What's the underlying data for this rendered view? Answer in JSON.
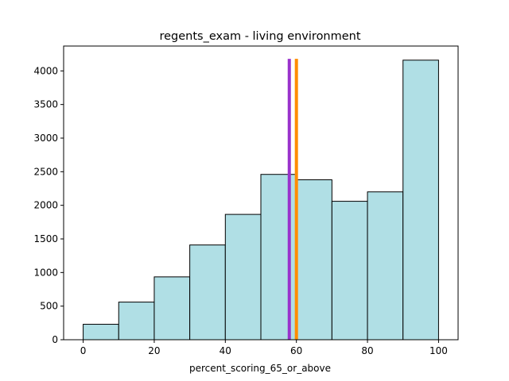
{
  "chart_data": {
    "type": "bar",
    "title": "regents_exam - living environment",
    "xlabel": "percent_scoring_65_or_above",
    "ylabel": "",
    "xlim": [
      -5.5,
      105.5
    ],
    "ylim": [
      0,
      4370
    ],
    "bin_edges": [
      0,
      10,
      20,
      30,
      40,
      50,
      60,
      70,
      80,
      90,
      100
    ],
    "values": [
      230,
      560,
      935,
      1410,
      1865,
      2460,
      2380,
      2060,
      2200,
      4160
    ],
    "xticks": [
      0,
      20,
      40,
      60,
      80,
      100
    ],
    "yticks": [
      0,
      500,
      1000,
      1500,
      2000,
      2500,
      3000,
      3500,
      4000
    ],
    "bar_color": "#b0dfe5",
    "bar_edge_color": "#000000",
    "vlines": [
      {
        "x": 58,
        "color": "#9932cc"
      },
      {
        "x": 60,
        "color": "#ff8c00"
      }
    ],
    "grid": false
  }
}
